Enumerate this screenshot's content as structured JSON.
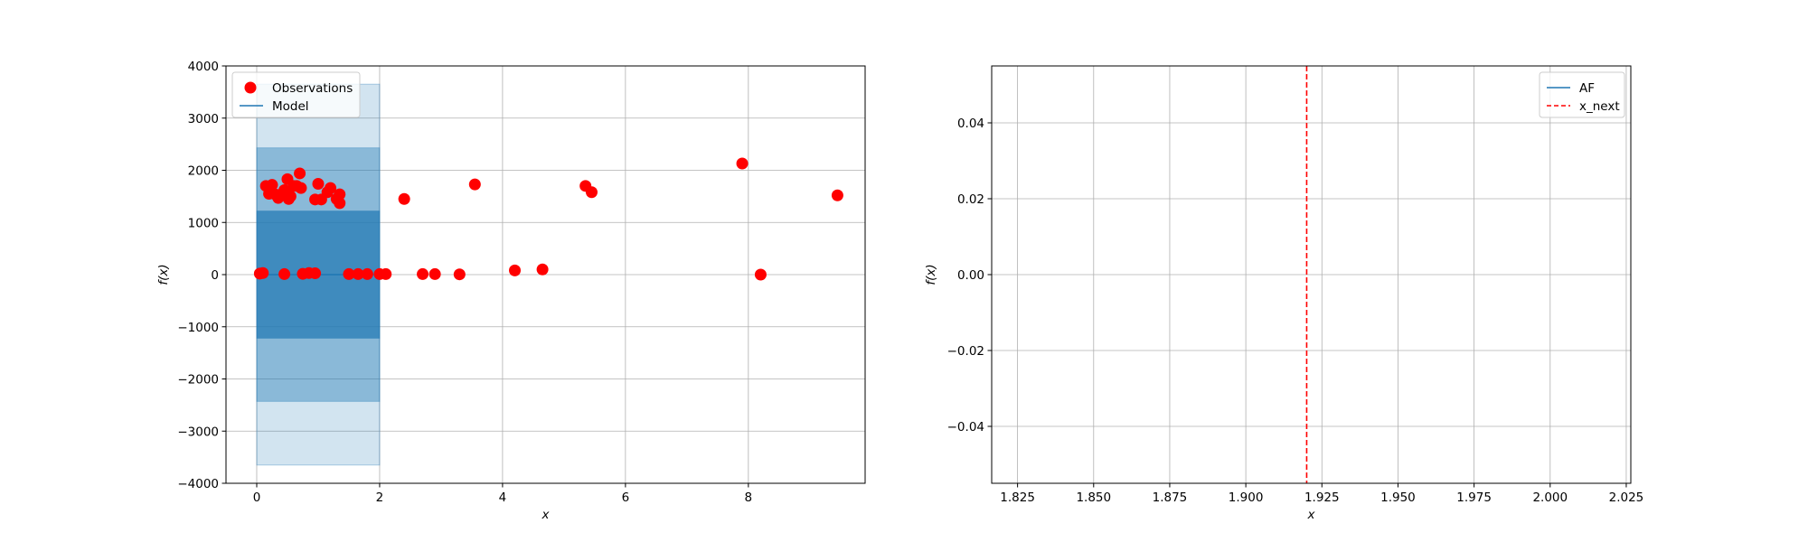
{
  "chart_data": [
    {
      "type": "scatter",
      "xlabel": "x",
      "ylabel": "f(x)",
      "xlim": [
        -0.5,
        9.9
      ],
      "ylim": [
        -4000,
        4000
      ],
      "xticks": [
        0,
        2,
        4,
        6,
        8
      ],
      "yticks": [
        -4000,
        -3000,
        -2000,
        -1000,
        0,
        1000,
        2000,
        3000,
        4000
      ],
      "xtick_labels": [
        "0",
        "2",
        "4",
        "6",
        "8"
      ],
      "ytick_labels": [
        "−4000",
        "−3000",
        "−2000",
        "−1000",
        "0",
        "1000",
        "2000",
        "3000",
        "4000"
      ],
      "grid": true,
      "legend": {
        "placement": "top-left",
        "entries": [
          {
            "label": "Observations",
            "marker": "circle",
            "color": "#ff0000"
          },
          {
            "label": "Model",
            "marker": "line",
            "color": "#1f77b4"
          }
        ]
      },
      "model": {
        "name": "Model",
        "x": [
          0,
          2
        ],
        "mean": [
          0,
          0
        ],
        "color": "#1f77b4",
        "bands": [
          {
            "lower": -3650,
            "upper": 3650,
            "opacity": 0.2
          },
          {
            "lower": -2430,
            "upper": 2430,
            "opacity": 0.4
          },
          {
            "lower": -1220,
            "upper": 1220,
            "opacity": 0.7
          }
        ]
      },
      "series": [
        {
          "name": "Observations",
          "color": "#ff0000",
          "points": [
            [
              0.05,
              20
            ],
            [
              0.1,
              30
            ],
            [
              0.45,
              10
            ],
            [
              0.75,
              15
            ],
            [
              0.85,
              30
            ],
            [
              0.95,
              25
            ],
            [
              1.5,
              10
            ],
            [
              1.65,
              10
            ],
            [
              1.8,
              10
            ],
            [
              2.0,
              10
            ],
            [
              2.1,
              10
            ],
            [
              2.7,
              10
            ],
            [
              2.9,
              10
            ],
            [
              3.3,
              5
            ],
            [
              4.2,
              80
            ],
            [
              4.65,
              100
            ],
            [
              8.2,
              0
            ],
            [
              0.15,
              1700
            ],
            [
              0.2,
              1550
            ],
            [
              0.25,
              1720
            ],
            [
              0.3,
              1540
            ],
            [
              0.35,
              1470
            ],
            [
              0.42,
              1560
            ],
            [
              0.45,
              1620
            ],
            [
              0.5,
              1830
            ],
            [
              0.52,
              1450
            ],
            [
              0.55,
              1500
            ],
            [
              0.6,
              1700
            ],
            [
              0.65,
              1700
            ],
            [
              0.7,
              1940
            ],
            [
              0.72,
              1660
            ],
            [
              0.95,
              1440
            ],
            [
              1.0,
              1740
            ],
            [
              1.05,
              1440
            ],
            [
              1.15,
              1580
            ],
            [
              1.2,
              1660
            ],
            [
              1.3,
              1450
            ],
            [
              1.35,
              1540
            ],
            [
              1.35,
              1370
            ],
            [
              2.4,
              1450
            ],
            [
              3.55,
              1730
            ],
            [
              5.35,
              1700
            ],
            [
              5.45,
              1580
            ],
            [
              7.9,
              2130
            ],
            [
              9.45,
              1520
            ]
          ]
        }
      ]
    },
    {
      "type": "line",
      "xlabel": "x",
      "ylabel": "f(x)",
      "xlim": [
        1.8165,
        2.0265
      ],
      "ylim": [
        -0.055,
        0.055
      ],
      "xticks": [
        1.825,
        1.85,
        1.875,
        1.9,
        1.925,
        1.95,
        1.975,
        2.0,
        2.025
      ],
      "yticks": [
        -0.04,
        -0.02,
        0.0,
        0.02,
        0.04
      ],
      "xtick_labels": [
        "1.825",
        "1.850",
        "1.875",
        "1.900",
        "1.925",
        "1.950",
        "1.975",
        "2.000",
        "2.025"
      ],
      "ytick_labels": [
        "−0.04",
        "−0.02",
        "0.00",
        "0.02",
        "0.04"
      ],
      "grid": true,
      "legend": {
        "placement": "top-right",
        "entries": [
          {
            "label": "AF",
            "marker": "line",
            "color": "#1f77b4"
          },
          {
            "label": "x_next",
            "marker": "dashed-line",
            "color": "#ff0000"
          }
        ]
      },
      "series": [
        {
          "name": "AF",
          "x": [],
          "y": [],
          "color": "#1f77b4"
        }
      ],
      "vlines": [
        {
          "name": "x_next",
          "x": 1.92,
          "color": "#ff0000",
          "style": "dashed"
        }
      ]
    }
  ]
}
